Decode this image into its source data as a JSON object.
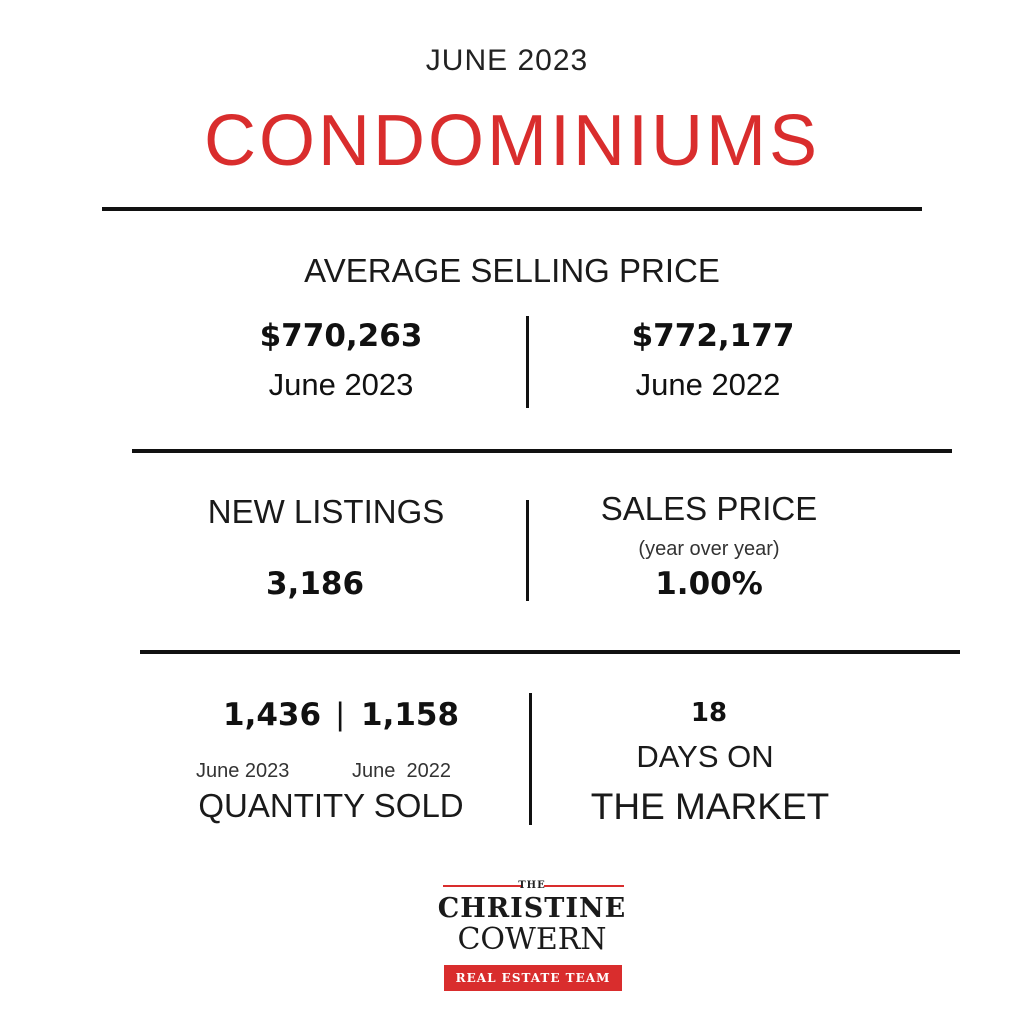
{
  "colors": {
    "accent_red": "#d92d2d",
    "text": "#1a1a1a",
    "rule": "#111111"
  },
  "header": {
    "month": "JUNE 2023",
    "title": "CONDOMINIUMS"
  },
  "average_selling_price": {
    "label": "AVERAGE SELLING PRICE",
    "current": {
      "value": "$770,263",
      "month": "June",
      "year": "2023"
    },
    "previous": {
      "value": "$772,177",
      "month": "June",
      "year": "2022"
    }
  },
  "new_listings": {
    "label": "NEW LISTINGS",
    "value": "3,186"
  },
  "sales_price": {
    "label": "SALES PRICE",
    "note": "(year over year)",
    "value": "1.00%"
  },
  "quantity_sold": {
    "current_value": "1,436",
    "separator": "|",
    "previous_value": "1,158",
    "current_period": "June 2023",
    "previous_period": "June  2022",
    "label": "QUANTITY SOLD"
  },
  "days_on_market": {
    "value": "18",
    "label_line1": "DAYS ON",
    "label_line2": "THE MARKET"
  },
  "logo": {
    "the": "THE",
    "name_line1": "CHRISTINE",
    "name_line2": "COWERN",
    "tagline": "REAL ESTATE TEAM"
  }
}
